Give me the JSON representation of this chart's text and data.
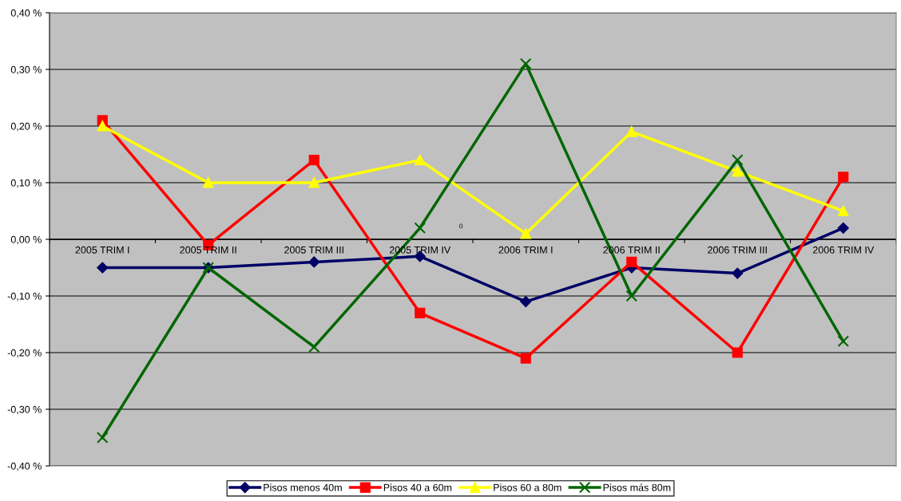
{
  "chart_data": {
    "type": "line",
    "categories": [
      "2005 TRIM I",
      "2005 TRIM II",
      "2005 TRIM III",
      "2005 TRIM IV",
      "2006 TRIM I",
      "2006 TRIM II",
      "2006 TRIM III",
      "2006 TRIM IV"
    ],
    "series": [
      {
        "name": "Pisos menos 40m",
        "color": "#000066",
        "marker": "diamond",
        "values": [
          -0.05,
          -0.05,
          -0.04,
          -0.03,
          -0.11,
          -0.05,
          -0.06,
          0.02
        ]
      },
      {
        "name": "Pisos 40 a 60m",
        "color": "#ff0000",
        "marker": "square",
        "values": [
          0.21,
          -0.01,
          0.14,
          -0.13,
          -0.21,
          -0.04,
          -0.2,
          0.11
        ]
      },
      {
        "name": "Pisos 60 a 80m",
        "color": "#ffff00",
        "marker": "triangle",
        "values": [
          0.2,
          0.1,
          0.1,
          0.14,
          0.01,
          0.19,
          0.12,
          0.05
        ]
      },
      {
        "name": "Pisos más 80m",
        "color": "#006600",
        "marker": "cross",
        "values": [
          -0.35,
          -0.05,
          -0.19,
          0.02,
          0.31,
          -0.1,
          0.14,
          -0.18
        ]
      }
    ],
    "ylim": [
      -0.4,
      0.4
    ],
    "yticks": [
      {
        "value": -0.4,
        "label": "-0,40 %"
      },
      {
        "value": -0.3,
        "label": "-0,30 %"
      },
      {
        "value": -0.2,
        "label": "-0,20 %"
      },
      {
        "value": -0.1,
        "label": "-0,10 %"
      },
      {
        "value": 0,
        "label": "0,00 %"
      },
      {
        "value": 0.1,
        "label": "0,10 %"
      },
      {
        "value": 0.2,
        "label": "0,20 %"
      },
      {
        "value": 0.3,
        "label": "0,30 %"
      },
      {
        "value": 0.4,
        "label": "0,40 %"
      }
    ],
    "grid": "y",
    "legend": "bottom",
    "line_style": "solid",
    "annotations": [
      "0"
    ]
  }
}
